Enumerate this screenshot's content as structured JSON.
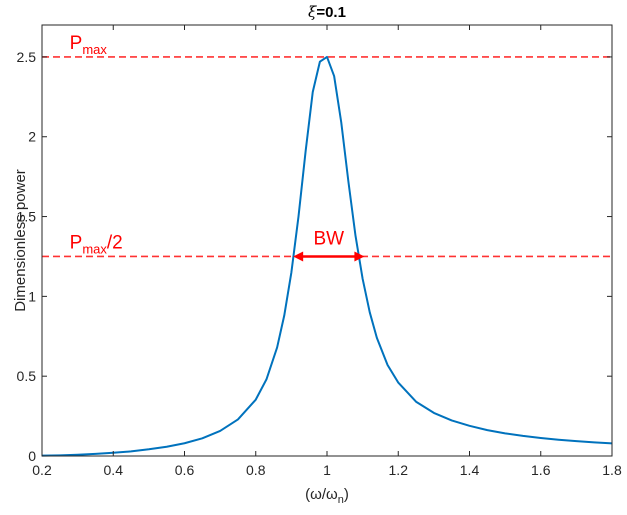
{
  "chart_data": {
    "type": "line",
    "title": {
      "symbol": "ξ",
      "rest": "=0.1"
    },
    "xlabel": {
      "open": "(ω/ω",
      "sub": "n",
      "close": ")"
    },
    "ylabel": "Dimensionless power",
    "xlim": [
      0.2,
      1.8
    ],
    "ylim": [
      0,
      2.7
    ],
    "x_ticks": [
      0.2,
      0.4,
      0.6,
      0.8,
      1,
      1.2,
      1.4,
      1.6,
      1.8
    ],
    "x_tick_labels": [
      "0.2",
      "0.4",
      "0.6",
      "0.8",
      "1",
      "1.2",
      "1.4",
      "1.6",
      "1.8"
    ],
    "y_ticks": [
      0,
      0.5,
      1,
      1.5,
      2,
      2.5
    ],
    "y_tick_labels": [
      "0",
      "0.5",
      "1",
      "1.5",
      "2",
      "2.5"
    ],
    "grid": false,
    "line_color": "#0072BD",
    "annotation_color": "#FF0000",
    "series": [
      {
        "x": [
          0.2,
          0.25,
          0.3,
          0.35,
          0.4,
          0.45,
          0.5,
          0.55,
          0.6,
          0.65,
          0.7,
          0.75,
          0.8,
          0.83,
          0.86,
          0.88,
          0.9,
          0.92,
          0.94,
          0.96,
          0.98,
          1.0,
          1.02,
          1.04,
          1.06,
          1.08,
          1.1,
          1.12,
          1.14,
          1.17,
          1.2,
          1.25,
          1.3,
          1.35,
          1.4,
          1.45,
          1.5,
          1.55,
          1.6,
          1.65,
          1.7,
          1.75,
          1.8
        ],
        "values": [
          0.002,
          0.004,
          0.008,
          0.013,
          0.02,
          0.029,
          0.042,
          0.058,
          0.08,
          0.111,
          0.157,
          0.229,
          0.353,
          0.48,
          0.68,
          0.88,
          1.15,
          1.5,
          1.91,
          2.28,
          2.47,
          2.5,
          2.38,
          2.09,
          1.72,
          1.38,
          1.11,
          0.9,
          0.74,
          0.57,
          0.46,
          0.34,
          0.27,
          0.223,
          0.189,
          0.162,
          0.142,
          0.126,
          0.113,
          0.102,
          0.093,
          0.085,
          0.079
        ]
      }
    ],
    "reference_lines": [
      {
        "y": 2.5,
        "label": {
          "main": "P",
          "sub": "max",
          "suffix": ""
        },
        "label_x": 0.3
      },
      {
        "y": 1.25,
        "label": {
          "main": "P",
          "sub": "max",
          "suffix": "/2"
        },
        "label_x": 0.3
      }
    ],
    "bandwidth": {
      "x_start": 0.905,
      "x_end": 1.105,
      "y": 1.25,
      "label": "BW"
    }
  }
}
